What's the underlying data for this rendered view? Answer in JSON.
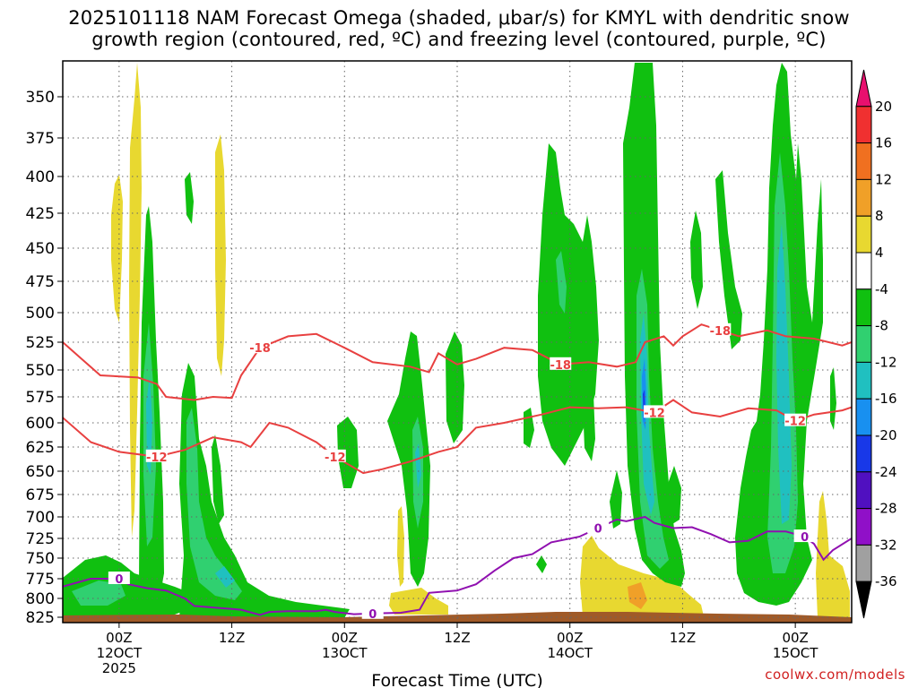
{
  "title_line1": "2025101118 NAM Forecast Omega (shaded, μbar/s) for KMYL with dendritic snow",
  "title_line2": "growth region (contoured, red, ºC) and freezing level (contoured, purple, ºC)",
  "credit": "coolwx.com/models",
  "chart_data": {
    "type": "heatmap",
    "title": "2025101118 NAM Forecast Omega (shaded, μbar/s) for KMYL with dendritic snow growth region (contoured, red, ºC) and freezing level (contoured, purple, ºC)",
    "xlabel": "Forecast Time (UTC)",
    "ylabel": "",
    "x_range_hours": [
      0,
      84
    ],
    "y_range_mb": [
      825,
      325
    ],
    "y_scale": "pressure",
    "grid": true,
    "x_ticks": [
      {
        "hour": 6,
        "label1": "00Z",
        "label2": "12OCT",
        "label3": "2025"
      },
      {
        "hour": 18,
        "label1": "12Z",
        "label2": "",
        "label3": ""
      },
      {
        "hour": 30,
        "label1": "00Z",
        "label2": "13OCT",
        "label3": ""
      },
      {
        "hour": 42,
        "label1": "12Z",
        "label2": "",
        "label3": ""
      },
      {
        "hour": 54,
        "label1": "00Z",
        "label2": "14OCT",
        "label3": ""
      },
      {
        "hour": 66,
        "label1": "12Z",
        "label2": "",
        "label3": ""
      },
      {
        "hour": 78,
        "label1": "00Z",
        "label2": "15OCT",
        "label3": ""
      }
    ],
    "y_ticks": [
      350,
      375,
      400,
      425,
      450,
      475,
      500,
      525,
      550,
      575,
      600,
      625,
      650,
      675,
      700,
      725,
      750,
      775,
      800,
      825
    ],
    "colorbar": {
      "labels": [
        "20",
        "16",
        "12",
        "8",
        "4",
        "-4",
        "-8",
        "-12",
        "-16",
        "-20",
        "-24",
        "-28",
        "-32",
        "-36"
      ],
      "colors": [
        "#e8106e",
        "#f03030",
        "#f07020",
        "#f0a028",
        "#e8d830",
        "#ffffff",
        "#10c010",
        "#30d070",
        "#20c0c0",
        "#1890f0",
        "#1838e8",
        "#5010c0",
        "#9010c8",
        "#a0a0a0",
        "#000000"
      ]
    },
    "contours": {
      "dgz_minus12": {
        "color": "#e84040",
        "label": "-12",
        "points": [
          [
            0,
            595
          ],
          [
            3,
            620
          ],
          [
            6,
            630
          ],
          [
            10,
            635
          ],
          [
            13,
            628
          ],
          [
            16,
            615
          ],
          [
            19,
            620
          ],
          [
            20,
            625
          ],
          [
            22,
            600
          ],
          [
            24,
            605
          ],
          [
            27,
            620
          ],
          [
            29,
            635
          ],
          [
            32,
            652
          ],
          [
            34,
            648
          ],
          [
            37,
            640
          ],
          [
            40,
            630
          ],
          [
            42,
            625
          ],
          [
            44,
            605
          ],
          [
            47,
            600
          ],
          [
            51,
            592
          ],
          [
            54,
            585
          ],
          [
            57,
            586
          ],
          [
            60,
            585
          ],
          [
            63,
            590
          ],
          [
            65,
            578
          ],
          [
            67,
            590
          ],
          [
            70,
            594
          ],
          [
            73,
            586
          ],
          [
            76,
            588
          ],
          [
            78,
            598
          ],
          [
            80,
            592
          ],
          [
            83,
            588
          ],
          [
            84,
            585
          ]
        ]
      },
      "dgz_minus18": {
        "color": "#e84040",
        "label": "-18",
        "points": [
          [
            0,
            525
          ],
          [
            2,
            540
          ],
          [
            4,
            555
          ],
          [
            8,
            557
          ],
          [
            10,
            563
          ],
          [
            11,
            575
          ],
          [
            14,
            578
          ],
          [
            16,
            575
          ],
          [
            18,
            576
          ],
          [
            19,
            555
          ],
          [
            21,
            530
          ],
          [
            24,
            520
          ],
          [
            27,
            518
          ],
          [
            30,
            530
          ],
          [
            33,
            543
          ],
          [
            37,
            547
          ],
          [
            39,
            552
          ],
          [
            40,
            535
          ],
          [
            42,
            545
          ],
          [
            44,
            540
          ],
          [
            47,
            530
          ],
          [
            50,
            532
          ],
          [
            53,
            545
          ],
          [
            56,
            543
          ],
          [
            59,
            547
          ],
          [
            61,
            543
          ],
          [
            62,
            525
          ],
          [
            64,
            520
          ],
          [
            65,
            528
          ],
          [
            66,
            520
          ],
          [
            68,
            510
          ],
          [
            70,
            515
          ],
          [
            72,
            520
          ],
          [
            75,
            515
          ],
          [
            77,
            520
          ],
          [
            80,
            522
          ],
          [
            83,
            528
          ],
          [
            84,
            525
          ]
        ]
      },
      "freezing_level": {
        "color": "#9010b0",
        "label": "0",
        "points": [
          [
            0,
            785
          ],
          [
            3,
            775
          ],
          [
            6,
            775
          ],
          [
            7,
            782
          ],
          [
            9,
            787
          ],
          [
            11,
            790
          ],
          [
            13,
            800
          ],
          [
            14,
            810
          ],
          [
            16,
            812
          ],
          [
            19,
            815
          ],
          [
            21,
            822
          ],
          [
            22,
            818
          ],
          [
            24,
            817
          ],
          [
            27,
            817
          ],
          [
            28,
            815
          ],
          [
            29,
            818
          ],
          [
            31,
            821
          ],
          [
            33,
            820
          ],
          [
            36,
            819
          ],
          [
            38,
            815
          ],
          [
            39,
            793
          ],
          [
            42,
            790
          ],
          [
            44,
            782
          ],
          [
            46,
            765
          ],
          [
            48,
            750
          ],
          [
            50,
            745
          ],
          [
            52,
            730
          ],
          [
            55,
            723
          ],
          [
            57,
            713
          ],
          [
            59,
            703
          ],
          [
            60,
            705
          ],
          [
            62,
            700
          ],
          [
            63,
            707
          ],
          [
            65,
            713
          ],
          [
            67,
            712
          ],
          [
            69,
            720
          ],
          [
            71,
            730
          ],
          [
            73,
            728
          ],
          [
            75,
            717
          ],
          [
            77,
            717
          ],
          [
            79,
            723
          ],
          [
            80,
            732
          ],
          [
            81,
            752
          ],
          [
            82,
            740
          ],
          [
            84,
            725
          ]
        ]
      }
    },
    "ground_level_mb": 825
  }
}
